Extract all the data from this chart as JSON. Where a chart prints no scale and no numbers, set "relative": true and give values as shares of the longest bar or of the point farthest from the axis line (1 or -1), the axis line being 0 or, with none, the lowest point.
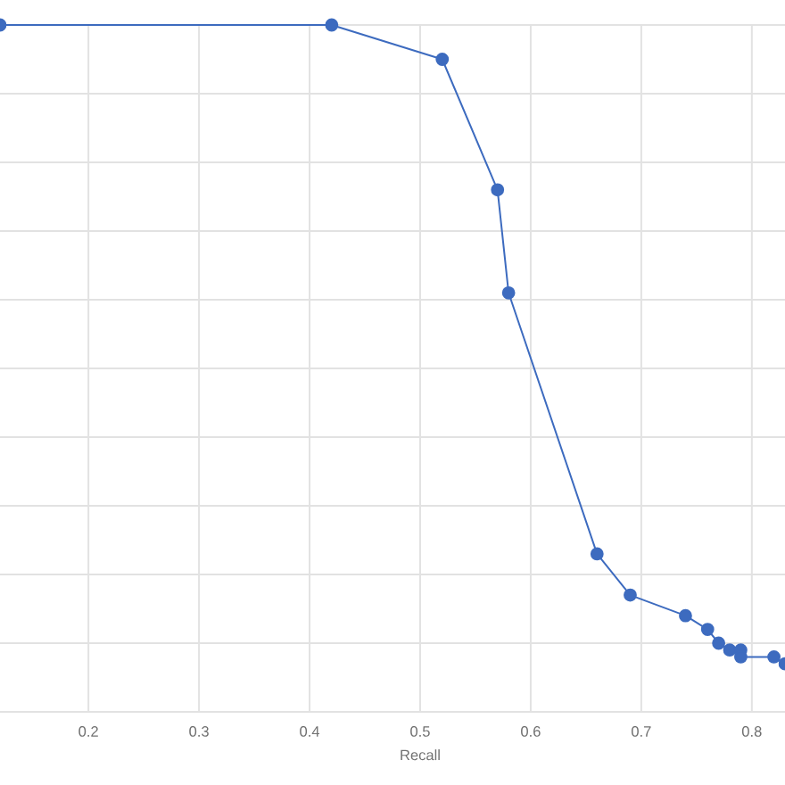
{
  "chart_data": {
    "type": "line",
    "xlabel": "Recall",
    "relative": true,
    "x": [
      0.12,
      0.42,
      0.52,
      0.57,
      0.58,
      0.66,
      0.69,
      0.74,
      0.76,
      0.77,
      0.78,
      0.79,
      0.79,
      0.82,
      0.83
    ],
    "series": [
      {
        "color": "#3d6bbf",
        "values": [
          1,
          1,
          0.95,
          0.76,
          0.61,
          0.23,
          0.17,
          0.14,
          0.12,
          0.1,
          0.09,
          0.09,
          0.08,
          0.08,
          0.07
        ]
      }
    ],
    "xlim": [
      0.12,
      0.83
    ],
    "xticks": [
      0.2,
      0.3,
      0.4,
      0.5,
      0.6,
      0.7,
      0.8
    ],
    "grid": true,
    "marker": "circle",
    "line_style": "solid"
  }
}
